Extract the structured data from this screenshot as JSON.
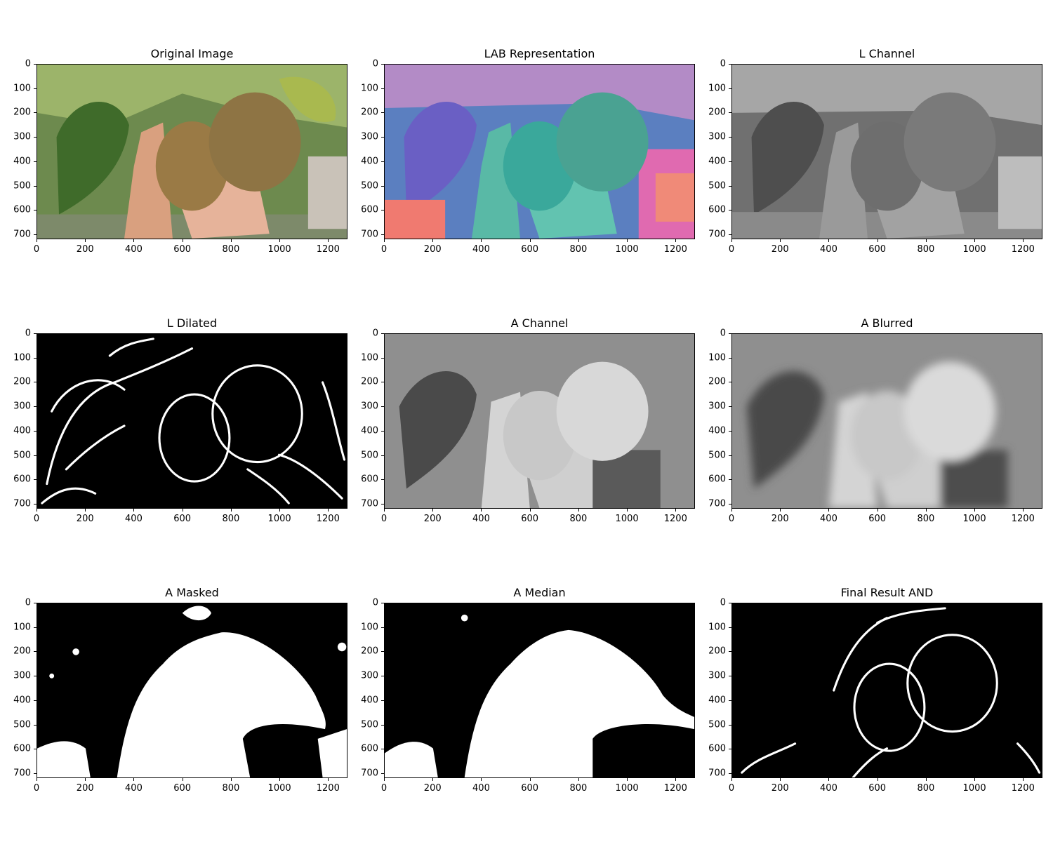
{
  "figure": {
    "x_ticks": [
      "0",
      "200",
      "400",
      "600",
      "800",
      "1000",
      "1200"
    ],
    "y_ticks": [
      "0",
      "100",
      "200",
      "300",
      "400",
      "500",
      "600",
      "700"
    ],
    "x_range": [
      0,
      1280
    ],
    "y_range": [
      0,
      720
    ],
    "panels": [
      {
        "id": "original",
        "title": "Original Image",
        "kind": "photo"
      },
      {
        "id": "lab",
        "title": "LAB Representation",
        "kind": "lab"
      },
      {
        "id": "l-channel",
        "title": "L Channel",
        "kind": "gray"
      },
      {
        "id": "l-dilated",
        "title": "L Dilated",
        "kind": "edges"
      },
      {
        "id": "a-channel",
        "title": "A Channel",
        "kind": "gray-a"
      },
      {
        "id": "a-blurred",
        "title": "A Blurred",
        "kind": "gray-blur"
      },
      {
        "id": "a-masked",
        "title": "A Masked",
        "kind": "mask"
      },
      {
        "id": "a-median",
        "title": "A Median",
        "kind": "mask-smooth"
      },
      {
        "id": "final-and",
        "title": "Final Result AND",
        "kind": "final"
      }
    ]
  },
  "colors": {
    "leaf": "#3f6b2a",
    "kiwi": "#8e7444",
    "skin": "#d9a07f",
    "lab_blue": "#5b7fc0",
    "lab_teal": "#3aa89b",
    "lab_pink": "#e06ab0",
    "mask_white": "#ffffff",
    "mask_black": "#000000"
  }
}
